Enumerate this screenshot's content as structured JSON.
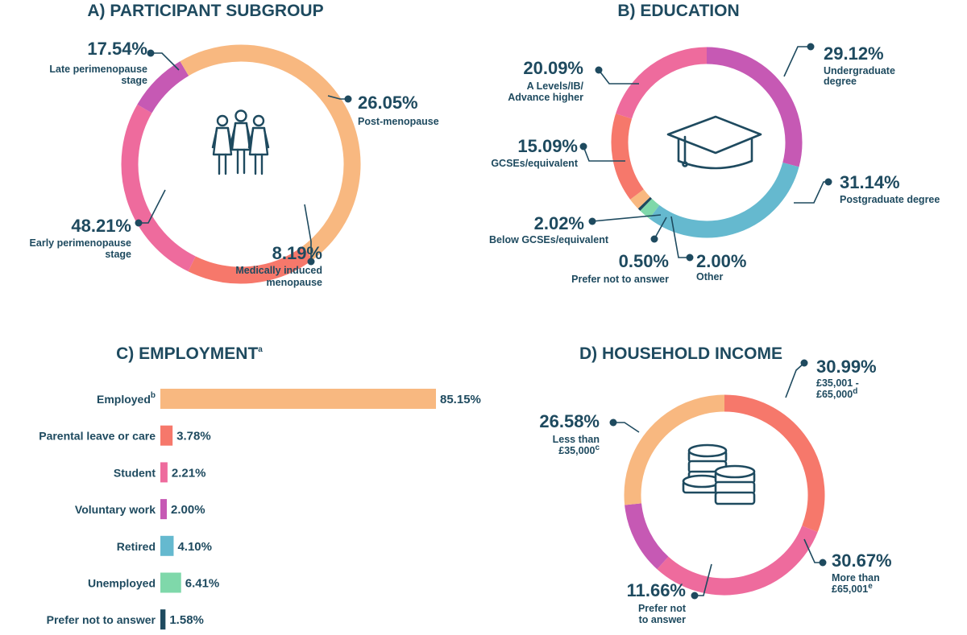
{
  "colors": {
    "text": "#1e4a5f",
    "orange": "#f8b880",
    "salmon": "#f6786b",
    "pink": "#ee6b9d",
    "purple": "#c659b4",
    "blue": "#65b9cf",
    "green": "#7fd8aa",
    "navy": "#1e4a5f"
  },
  "chart_data": [
    {
      "id": "participant",
      "type": "pie",
      "title": "A) PARTICIPANT SUBGROUP",
      "icon": "women-group-icon",
      "slices": [
        {
          "key": "late",
          "label": [
            "Late perimenopause",
            "stage"
          ],
          "value": 17.54,
          "value_label": "17.54%",
          "color": "#f6786b"
        },
        {
          "key": "post",
          "label": [
            "Post-menopause"
          ],
          "value": 26.05,
          "value_label": "26.05%",
          "color": "#ee6b9d"
        },
        {
          "key": "medical",
          "label": [
            "Medically induced",
            "menopause"
          ],
          "value": 8.19,
          "value_label": "8.19%",
          "color": "#c659b4"
        },
        {
          "key": "early",
          "label": [
            "Early perimenopause",
            "stage"
          ],
          "value": 48.21,
          "value_label": "48.21%",
          "color": "#f8b880"
        }
      ]
    },
    {
      "id": "education",
      "type": "pie",
      "title": "B) EDUCATION",
      "icon": "graduation-cap-icon",
      "slices": [
        {
          "key": "undergrad",
          "label": [
            "Undergraduate",
            "degree"
          ],
          "value": 29.12,
          "value_label": "29.12%",
          "color": "#c659b4"
        },
        {
          "key": "postgrad",
          "label": [
            "Postgraduate degree"
          ],
          "value": 31.14,
          "value_label": "31.14%",
          "color": "#65b9cf"
        },
        {
          "key": "other",
          "label": [
            "Other"
          ],
          "value": 2.0,
          "value_label": "2.00%",
          "color": "#7fd8aa"
        },
        {
          "key": "prefer",
          "label": [
            "Prefer not to answer"
          ],
          "value": 0.5,
          "value_label": "0.50%",
          "color": "#1e4a5f"
        },
        {
          "key": "below",
          "label": [
            "Below GCSEs/equivalent"
          ],
          "value": 2.02,
          "value_label": "2.02%",
          "color": "#f8b880"
        },
        {
          "key": "gcse",
          "label": [
            "GCSEs/equivalent"
          ],
          "value": 15.09,
          "value_label": "15.09%",
          "color": "#f6786b"
        },
        {
          "key": "alevels",
          "label": [
            "A Levels/IB/",
            "Advance higher"
          ],
          "value": 20.09,
          "value_label": "20.09%",
          "color": "#ee6b9d"
        }
      ]
    },
    {
      "id": "employment",
      "type": "bar",
      "orientation": "horizontal",
      "title": "C) EMPLOYMENT",
      "title_sup": "a",
      "xlim": [
        0,
        85.15
      ],
      "bars": [
        {
          "key": "employed",
          "label": "Employed",
          "sup": "b",
          "value": 85.15,
          "value_label": "85.15%",
          "color": "#f8b880"
        },
        {
          "key": "parental",
          "label": "Parental leave or care",
          "sup": "",
          "value": 3.78,
          "value_label": "3.78%",
          "color": "#f6786b"
        },
        {
          "key": "student",
          "label": "Student",
          "sup": "",
          "value": 2.21,
          "value_label": "2.21%",
          "color": "#ee6b9d"
        },
        {
          "key": "voluntary",
          "label": "Voluntary work",
          "sup": "",
          "value": 2.0,
          "value_label": "2.00%",
          "color": "#c659b4"
        },
        {
          "key": "retired",
          "label": "Retired",
          "sup": "",
          "value": 4.1,
          "value_label": "4.10%",
          "color": "#65b9cf"
        },
        {
          "key": "unemployed",
          "label": "Unemployed",
          "sup": "",
          "value": 6.41,
          "value_label": "6.41%",
          "color": "#7fd8aa"
        },
        {
          "key": "prefer",
          "label": "Prefer not to answer",
          "sup": "",
          "value": 1.58,
          "value_label": "1.58%",
          "color": "#1e4a5f"
        }
      ]
    },
    {
      "id": "income",
      "type": "pie",
      "title": "D) HOUSEHOLD INCOME",
      "icon": "coins-icon",
      "slices": [
        {
          "key": "mid",
          "label": [
            "£35,001 -",
            "£65,000"
          ],
          "sup": "d",
          "value": 30.99,
          "value_label": "30.99%",
          "color": "#f6786b"
        },
        {
          "key": "high",
          "label": [
            "More than",
            "£65,001"
          ],
          "sup": "e",
          "value": 30.67,
          "value_label": "30.67%",
          "color": "#ee6b9d"
        },
        {
          "key": "prefer",
          "label": [
            "Prefer not",
            "to answer"
          ],
          "sup": "",
          "value": 11.66,
          "value_label": "11.66%",
          "color": "#c659b4"
        },
        {
          "key": "low",
          "label": [
            "Less than",
            "£35,000"
          ],
          "sup": "c",
          "value": 26.58,
          "value_label": "26.58%",
          "color": "#f8b880"
        }
      ]
    }
  ]
}
